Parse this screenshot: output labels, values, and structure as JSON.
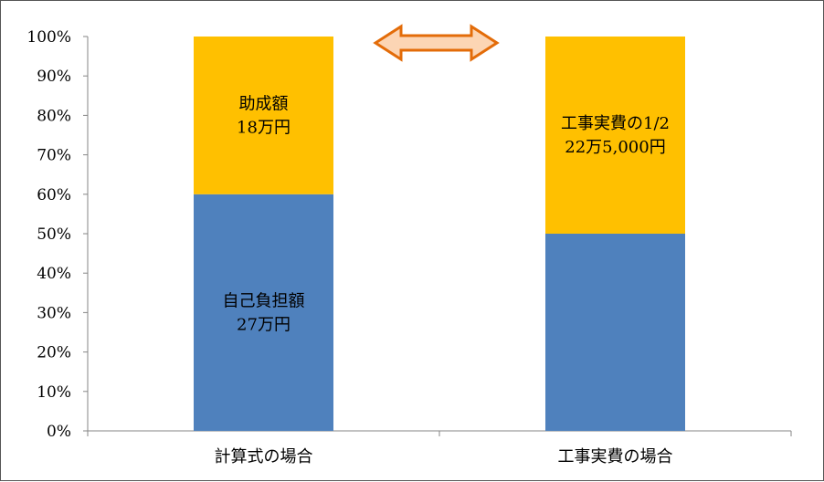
{
  "chart_data": {
    "type": "bar",
    "stacked": true,
    "percent": true,
    "categories": [
      "計算式の場合",
      "工事実費の場合"
    ],
    "series": [
      {
        "color": "#4F81BD",
        "values": [
          60,
          50
        ],
        "labels": [
          [
            "自己負担額",
            "27万円"
          ],
          [
            "",
            ""
          ]
        ]
      },
      {
        "color": "#FFC000",
        "values": [
          40,
          50
        ],
        "labels": [
          [
            "助成額",
            "18万円"
          ],
          [
            "工事実費の1/2",
            "22万5,000円"
          ]
        ]
      }
    ],
    "ylim": [
      0,
      100
    ],
    "yticks": [
      "0%",
      "10%",
      "20%",
      "30%",
      "40%",
      "50%",
      "60%",
      "70%",
      "80%",
      "90%",
      "100%"
    ],
    "grid": false,
    "legend": "none",
    "annotation": {
      "shape": "double-arrow",
      "between": [
        "計算式の場合",
        "工事実費の場合"
      ],
      "color": "#E36C09",
      "fill": "#FCD5B4"
    }
  }
}
